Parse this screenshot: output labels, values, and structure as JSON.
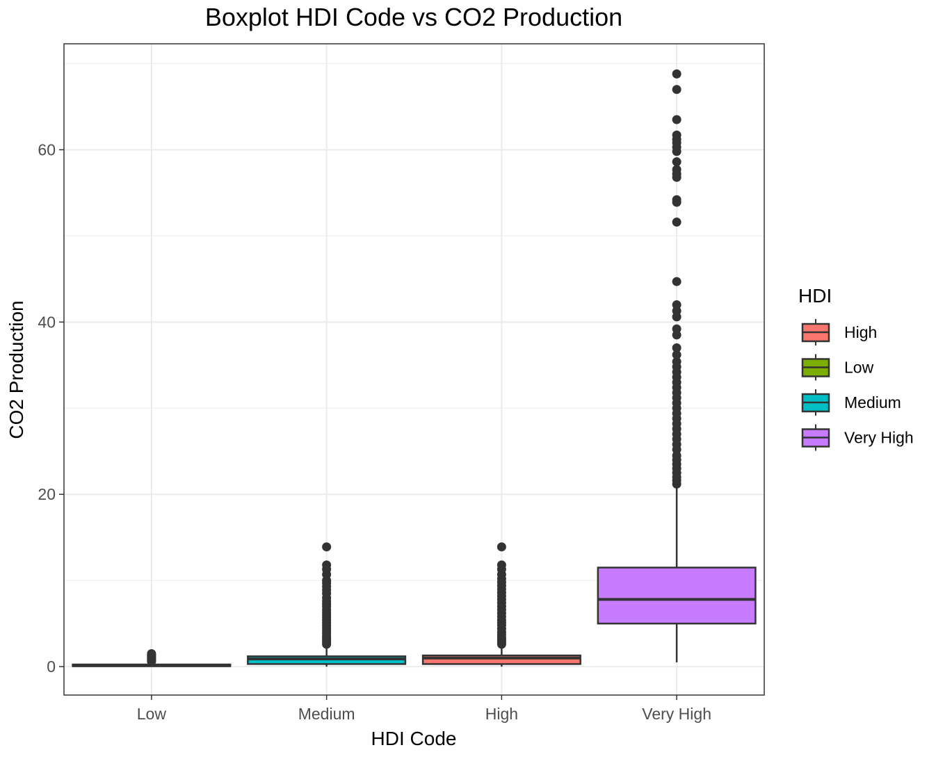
{
  "chart_data": {
    "type": "boxplot",
    "title": "Boxplot HDI Code vs CO2 Production",
    "xlabel": "HDI Code",
    "ylabel": "CO2 Production",
    "categories": [
      "Low",
      "Medium",
      "High",
      "Very High"
    ],
    "ylim": [
      -3.3,
      72.3
    ],
    "yticks": [
      0,
      20,
      40,
      60
    ],
    "grid": true,
    "legend": {
      "title": "HDI",
      "position": "right",
      "entries": [
        {
          "label": "High",
          "color": "#F8766D"
        },
        {
          "label": "Low",
          "color": "#7CAE00"
        },
        {
          "label": "Medium",
          "color": "#00BFC4"
        },
        {
          "label": "Very High",
          "color": "#C77CFF"
        }
      ]
    },
    "boxes": [
      {
        "category": "Low",
        "group": "Low",
        "color": "#7CAE00",
        "whisker_low": 0.0,
        "q1": 0.05,
        "median": 0.12,
        "q3": 0.25,
        "whisker_high": 0.55,
        "outliers": [
          0.6,
          0.7,
          0.8,
          0.9,
          1.0,
          1.1,
          1.2,
          1.3,
          1.4,
          1.5
        ]
      },
      {
        "category": "Medium",
        "group": "Medium",
        "color": "#00BFC4",
        "whisker_low": 0.0,
        "q1": 0.3,
        "median": 0.9,
        "q3": 1.2,
        "whisker_high": 2.5,
        "outliers": [
          2.6,
          2.8,
          3.0,
          3.2,
          3.4,
          3.6,
          3.9,
          4.2,
          4.5,
          4.8,
          5.1,
          5.4,
          5.7,
          6.0,
          6.3,
          6.6,
          7.0,
          7.3,
          7.6,
          8.0,
          8.5,
          8.9,
          9.3,
          9.7,
          10.0,
          10.7,
          11.3,
          11.8,
          13.9
        ]
      },
      {
        "category": "High",
        "group": "High",
        "color": "#F8766D",
        "whisker_low": 0.0,
        "q1": 0.3,
        "median": 1.0,
        "q3": 1.3,
        "whisker_high": 2.5,
        "outliers": [
          2.6,
          2.8,
          3.0,
          3.2,
          3.4,
          3.7,
          4.0,
          4.4,
          4.8,
          5.1,
          5.4,
          5.8,
          6.2,
          6.6,
          7.0,
          7.4,
          7.8,
          8.2,
          8.6,
          9.0,
          9.4,
          9.8,
          10.2,
          10.7,
          11.3,
          11.8,
          13.9
        ]
      },
      {
        "category": "Very High",
        "group": "Very High",
        "color": "#C77CFF",
        "whisker_low": 0.5,
        "q1": 5.0,
        "median": 7.8,
        "q3": 11.5,
        "whisker_high": 21.0,
        "outliers": [
          21.2,
          21.6,
          22.0,
          22.5,
          23.0,
          23.5,
          24.0,
          24.5,
          25.2,
          25.8,
          26.4,
          27.0,
          27.6,
          28.2,
          28.8,
          29.4,
          30.0,
          30.6,
          31.2,
          31.8,
          32.4,
          33.0,
          33.6,
          34.2,
          34.8,
          35.4,
          36.2,
          37.0,
          38.5,
          39.2,
          40.6,
          41.3,
          42.0,
          44.7,
          51.6,
          53.9,
          54.2,
          56.8,
          57.2,
          57.7,
          58.6,
          59.8,
          60.3,
          60.8,
          61.2,
          61.7,
          63.5,
          67.0,
          68.8
        ]
      }
    ]
  }
}
